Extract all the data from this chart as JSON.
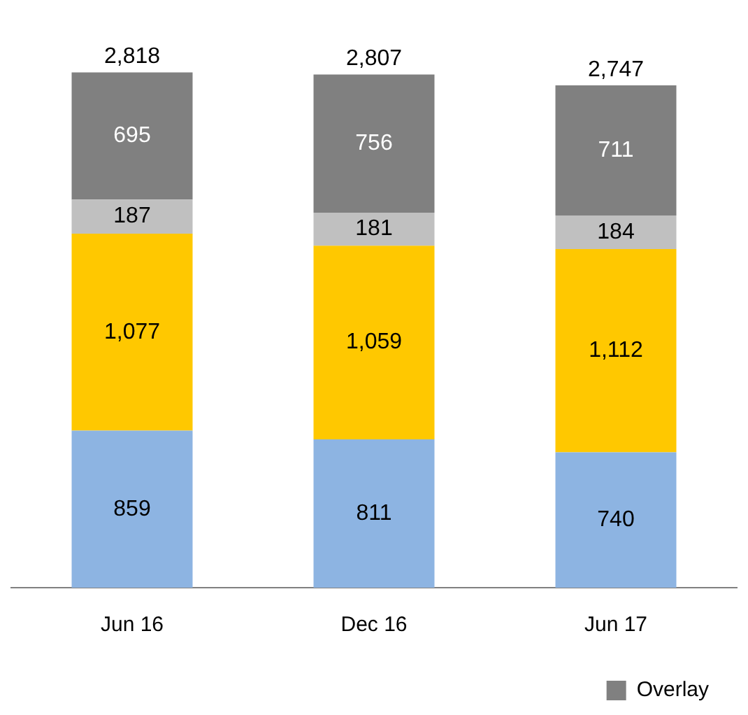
{
  "chart_data": {
    "type": "bar",
    "stacked": true,
    "data_labels": true,
    "legend": "bottom",
    "grid": false,
    "tick_labels": "x",
    "categories": [
      "Jun 16",
      "Dec 16",
      "Jun 17"
    ],
    "series": [
      {
        "color": "#8db4e2",
        "values": [
          859,
          811,
          740
        ]
      },
      {
        "color": "#ffc800",
        "values": [
          1077,
          1059,
          1112
        ],
        "value_labels": [
          "1,077",
          "1,059",
          "1,112"
        ]
      },
      {
        "color": "#c0c0c0",
        "values": [
          187,
          181,
          184
        ]
      },
      {
        "name": "Overlay",
        "color": "#808080",
        "values": [
          695,
          756,
          711
        ]
      }
    ],
    "totals": [
      "2,818",
      "2,807",
      "2,747"
    ]
  }
}
